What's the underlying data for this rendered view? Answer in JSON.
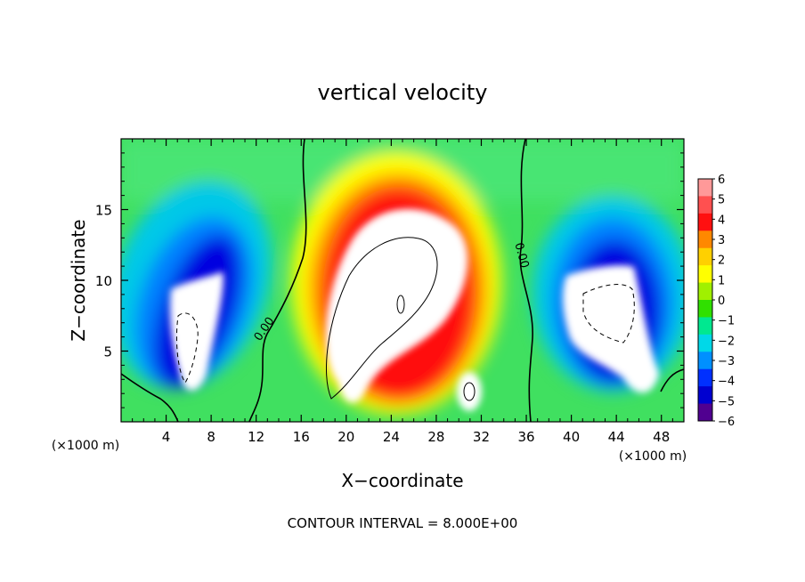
{
  "chart_data": {
    "type": "heatmap",
    "title": "vertical velocity",
    "xlabel": "X−coordinate",
    "ylabel": "Z−coordinate",
    "x_units_left": "(×1000 m)",
    "x_units_right": "(×1000 m)",
    "xlim": [
      0,
      50
    ],
    "ylim": [
      0,
      20
    ],
    "x_ticks": [
      4,
      8,
      12,
      16,
      20,
      24,
      28,
      32,
      36,
      40,
      44,
      48
    ],
    "y_ticks": [
      5,
      10,
      15
    ],
    "x_tick_labels": [
      "4",
      "8",
      "12",
      "16",
      "20",
      "24",
      "28",
      "32",
      "36",
      "40",
      "44",
      "48"
    ],
    "y_tick_labels": [
      "5",
      "10",
      "15"
    ],
    "colorbar": {
      "min": -6,
      "max": 6,
      "labels": [
        "6",
        "5",
        "4",
        "3",
        "2",
        "1",
        "0",
        "−1",
        "−2",
        "−3",
        "−4",
        "−5",
        "−6"
      ],
      "colors": [
        "#ff9999",
        "#ff5050",
        "#ff1010",
        "#ff8800",
        "#ffd000",
        "#ffff00",
        "#a0f000",
        "#30e000",
        "#00e890",
        "#00d8e8",
        "#0090ff",
        "#0030ff",
        "#0000d0",
        "#500090"
      ]
    },
    "contour_labels": [
      "0.00",
      "0.00"
    ],
    "footnote": "CONTOUR INTERVAL = 8.000E+00",
    "features": [
      {
        "kind": "updraft",
        "x": 24.5,
        "z": 9.5,
        "w": 6
      },
      {
        "kind": "updraft",
        "x": 21.0,
        "z": 3.0,
        "w": 6
      },
      {
        "kind": "updraft",
        "x": 30.5,
        "z": 2.5,
        "w": 6
      },
      {
        "kind": "downdraft",
        "x": 7.0,
        "z": 7.0,
        "w": -6
      },
      {
        "kind": "downdraft",
        "x": 43.5,
        "z": 7.5,
        "w": -6
      }
    ]
  }
}
